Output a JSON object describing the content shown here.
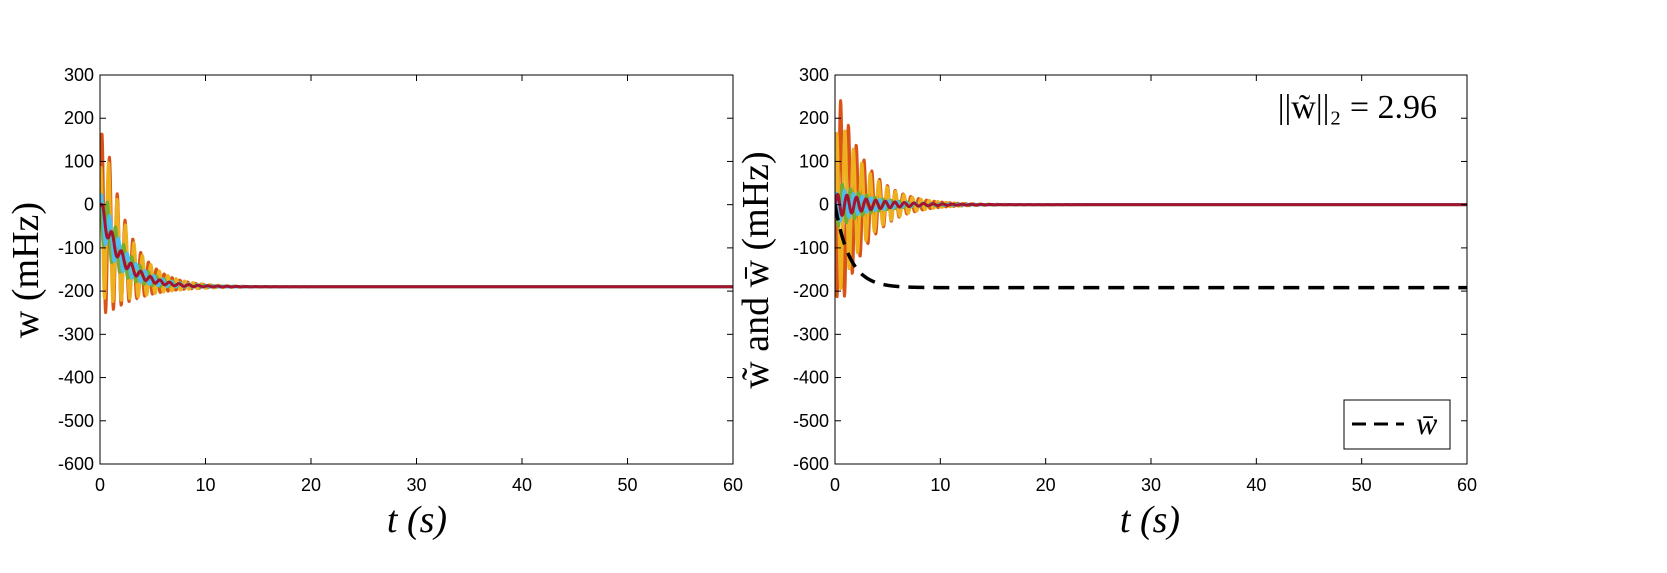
{
  "colors": {
    "orange": "#D95319",
    "yellow": "#EDB120",
    "purple": "#7E2F8E",
    "green": "#77AC30",
    "cyan": "#4DBEEE",
    "red": "#A2142F",
    "black": "#000000"
  },
  "chart_data": [
    {
      "type": "line",
      "title": "",
      "xlabel": "t (s)",
      "ylabel": "w (mHz)",
      "xlim": [
        0,
        60
      ],
      "ylim": [
        -600,
        300
      ],
      "xticks": [
        "0",
        "10",
        "20",
        "30",
        "40",
        "50",
        "60"
      ],
      "yticks": [
        "300",
        "200",
        "100",
        "0",
        "-100",
        "-200",
        "-300",
        "-400",
        "-500",
        "-600"
      ],
      "grid": false,
      "series": [
        {
          "color_key": "orange",
          "model": {
            "mean_start": 0,
            "mean_end": -190,
            "tau": 2.0,
            "amp": 260,
            "damp": 2.4,
            "freq": 1.35,
            "phase": 0.2
          }
        },
        {
          "color_key": "yellow",
          "model": {
            "mean_start": 0,
            "mean_end": -190,
            "tau": 2.0,
            "amp": 220,
            "damp": 2.6,
            "freq": 1.25,
            "phase": 1.4
          }
        },
        {
          "color_key": "green",
          "model": {
            "mean_start": 0,
            "mean_end": -190,
            "tau": 2.0,
            "amp": 80,
            "damp": 2.8,
            "freq": 1.3,
            "phase": 2.1
          }
        },
        {
          "color_key": "cyan",
          "model": {
            "mean_start": 0,
            "mean_end": -190,
            "tau": 2.0,
            "amp": 60,
            "damp": 3.0,
            "freq": 1.2,
            "phase": 0.9
          }
        },
        {
          "color_key": "red",
          "model": {
            "mean_start": 0,
            "mean_end": -190,
            "tau": 2.0,
            "amp": 25,
            "damp": 3.5,
            "freq": 1.1,
            "phase": 0.0
          }
        }
      ]
    },
    {
      "type": "line",
      "title": "",
      "xlabel": "t (s)",
      "ylabel": "w̃ and w̄ (mHz)",
      "xlim": [
        0,
        60
      ],
      "ylim": [
        -600,
        300
      ],
      "xticks": [
        "0",
        "10",
        "20",
        "30",
        "40",
        "50",
        "60"
      ],
      "yticks": [
        "300",
        "200",
        "100",
        "0",
        "-100",
        "-200",
        "-300",
        "-400",
        "-500",
        "-600"
      ],
      "grid": false,
      "annotation": "||w̃||₂ = 2.96",
      "legend": {
        "position": "bottom-right",
        "entries": [
          "w̄"
        ]
      },
      "series": [
        {
          "color_key": "orange",
          "model": {
            "mean_start": 0,
            "mean_end": 0,
            "tau": 1,
            "amp": 300,
            "damp": 2.6,
            "freq": 1.35,
            "phase": 3.3
          }
        },
        {
          "color_key": "yellow",
          "model": {
            "mean_start": 0,
            "mean_end": 0,
            "tau": 1,
            "amp": 240,
            "damp": 2.8,
            "freq": 1.25,
            "phase": 0.4
          }
        },
        {
          "color_key": "green",
          "model": {
            "mean_start": 0,
            "mean_end": 0,
            "tau": 1,
            "amp": 60,
            "damp": 3.0,
            "freq": 1.3,
            "phase": 2.1
          }
        },
        {
          "color_key": "cyan",
          "model": {
            "mean_start": 0,
            "mean_end": 0,
            "tau": 1,
            "amp": 45,
            "damp": 3.2,
            "freq": 1.2,
            "phase": 0.9
          }
        },
        {
          "color_key": "red",
          "model": {
            "mean_start": 0,
            "mean_end": 0,
            "tau": 1,
            "amp": 30,
            "damp": 3.6,
            "freq": 1.1,
            "phase": 0.0
          }
        },
        {
          "name": "w̄",
          "color_key": "black",
          "dashed": true,
          "model": {
            "mean_start": 0,
            "mean_end": -192,
            "tau": 1.4,
            "amp": 0,
            "damp": 1,
            "freq": 1,
            "phase": 0
          }
        }
      ]
    }
  ]
}
